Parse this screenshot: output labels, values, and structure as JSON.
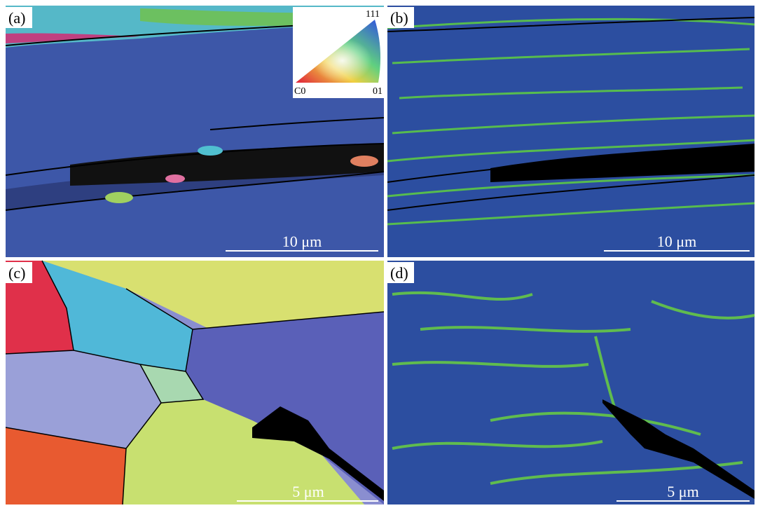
{
  "panels": [
    {
      "label": "(a)",
      "scale_bar": "10 μm"
    },
    {
      "label": "(b)",
      "scale_bar": "10 μm"
    },
    {
      "label": "(c)",
      "scale_bar": "5 μm"
    },
    {
      "label": "(d)",
      "scale_bar": "5 μm"
    }
  ],
  "inset": {
    "top": "111",
    "left": "C0",
    "right": "01"
  }
}
